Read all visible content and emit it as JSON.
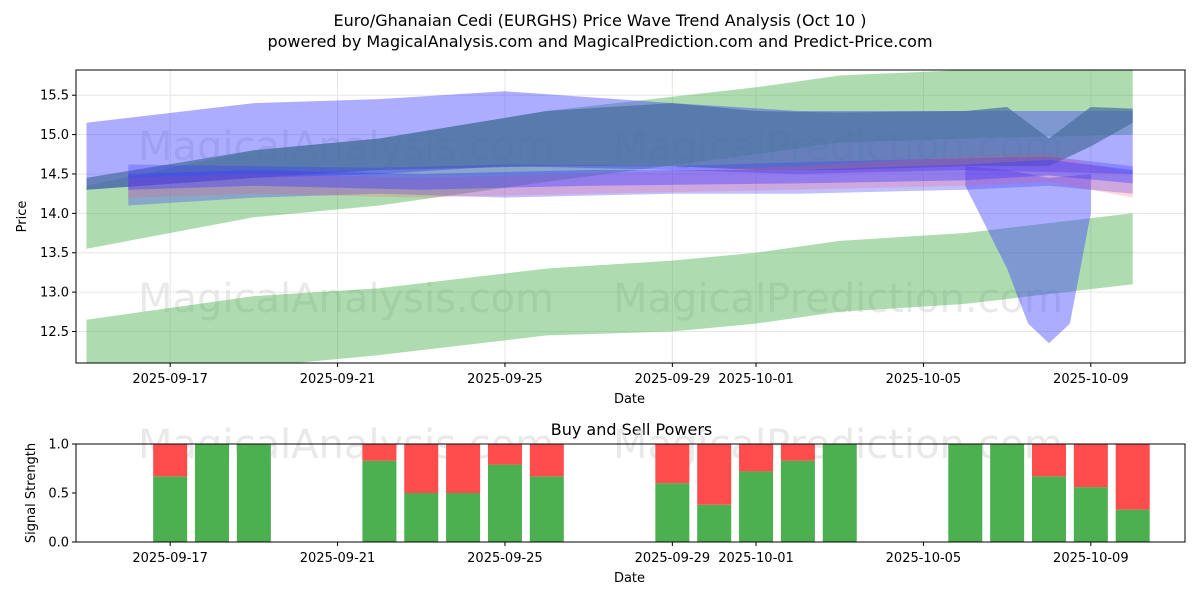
{
  "chart_data": [
    {
      "type": "area",
      "title_line1": "Euro/Ghanaian Cedi (EURGHS) Price Wave Trend Analysis (Oct 10 )",
      "title_line2": "powered by MagicalAnalysis.com and MagicalPrediction.com and Predict-Price.com",
      "xlabel": "Date",
      "ylabel": "Price",
      "x_range": [
        "2025-09-14T18:00",
        "2025-10-11T06:00"
      ],
      "ylim": [
        12.1,
        15.82
      ],
      "yticks": [
        12.5,
        13.0,
        13.5,
        14.0,
        14.5,
        15.0,
        15.5
      ],
      "xticks": [
        "2025-09-17",
        "2025-09-21",
        "2025-09-25",
        "2025-09-29",
        "2025-10-01",
        "2025-10-05",
        "2025-10-09"
      ],
      "watermarks": [
        "MagicalAnalysis.com",
        "MagicalPrediction.com"
      ],
      "colors": {
        "green": "#4caf50",
        "blue": "#3b3bff",
        "dark": "#4a6fa0",
        "red": "#ff4d6a"
      },
      "bands": [
        {
          "name": "green-upper-band",
          "color": "green",
          "opacity": 0.45,
          "upper": [
            [
              "2025-09-15",
              14.35
            ],
            [
              "2025-09-19",
              14.8
            ],
            [
              "2025-09-22",
              14.95
            ],
            [
              "2025-09-26",
              15.3
            ],
            [
              "2025-10-01",
              15.6
            ],
            [
              "2025-10-03",
              15.75
            ],
            [
              "2025-10-06",
              15.82
            ],
            [
              "2025-10-10",
              15.85
            ]
          ],
          "lower": [
            [
              "2025-09-15",
              13.55
            ],
            [
              "2025-09-19",
              13.95
            ],
            [
              "2025-09-22",
              14.1
            ],
            [
              "2025-09-26",
              14.4
            ],
            [
              "2025-10-01",
              14.75
            ],
            [
              "2025-10-03",
              14.9
            ],
            [
              "2025-10-06",
              14.95
            ],
            [
              "2025-10-10",
              15.0
            ]
          ]
        },
        {
          "name": "green-lower-band",
          "color": "green",
          "opacity": 0.45,
          "upper": [
            [
              "2025-09-15",
              12.65
            ],
            [
              "2025-09-19",
              12.95
            ],
            [
              "2025-09-22",
              13.05
            ],
            [
              "2025-09-26",
              13.3
            ],
            [
              "2025-09-29",
              13.4
            ],
            [
              "2025-10-01",
              13.5
            ],
            [
              "2025-10-03",
              13.65
            ],
            [
              "2025-10-06",
              13.75
            ],
            [
              "2025-10-10",
              14.0
            ]
          ],
          "lower": [
            [
              "2025-09-15",
              12.0
            ],
            [
              "2025-09-19",
              12.05
            ],
            [
              "2025-09-22",
              12.2
            ],
            [
              "2025-09-26",
              12.45
            ],
            [
              "2025-09-29",
              12.5
            ],
            [
              "2025-10-01",
              12.6
            ],
            [
              "2025-10-03",
              12.75
            ],
            [
              "2025-10-06",
              12.85
            ],
            [
              "2025-10-10",
              13.1
            ]
          ]
        },
        {
          "name": "blue-wide-band",
          "color": "blue",
          "opacity": 0.42,
          "upper": [
            [
              "2025-09-15",
              15.15
            ],
            [
              "2025-09-19",
              15.4
            ],
            [
              "2025-09-22",
              15.45
            ],
            [
              "2025-09-25",
              15.55
            ],
            [
              "2025-09-29",
              15.4
            ],
            [
              "2025-10-02",
              15.3
            ],
            [
              "2025-10-06",
              15.3
            ],
            [
              "2025-10-10",
              15.3
            ]
          ],
          "lower": [
            [
              "2025-09-15",
              14.3
            ],
            [
              "2025-09-19",
              14.45
            ],
            [
              "2025-09-22",
              14.5
            ],
            [
              "2025-09-25",
              14.6
            ],
            [
              "2025-09-29",
              14.55
            ],
            [
              "2025-10-02",
              14.5
            ],
            [
              "2025-10-06",
              14.55
            ],
            [
              "2025-10-10",
              14.5
            ]
          ]
        },
        {
          "name": "dark-teal-band",
          "color": "dark",
          "opacity": 0.72,
          "upper": [
            [
              "2025-09-15",
              14.45
            ],
            [
              "2025-09-19",
              14.8
            ],
            [
              "2025-09-22",
              14.95
            ],
            [
              "2025-09-26",
              15.3
            ],
            [
              "2025-09-29",
              15.4
            ],
            [
              "2025-10-01",
              15.3
            ],
            [
              "2025-10-03",
              15.28
            ],
            [
              "2025-10-06",
              15.3
            ],
            [
              "2025-10-07",
              15.35
            ],
            [
              "2025-10-08",
              14.95
            ],
            [
              "2025-10-09",
              15.35
            ],
            [
              "2025-10-10",
              15.33
            ]
          ],
          "lower": [
            [
              "2025-09-15",
              14.3
            ],
            [
              "2025-09-19",
              14.45
            ],
            [
              "2025-09-22",
              14.55
            ],
            [
              "2025-09-26",
              14.6
            ],
            [
              "2025-09-29",
              14.6
            ],
            [
              "2025-10-01",
              14.55
            ],
            [
              "2025-10-03",
              14.55
            ],
            [
              "2025-10-06",
              14.6
            ],
            [
              "2025-10-07",
              14.6
            ],
            [
              "2025-10-08",
              14.6
            ],
            [
              "2025-10-09",
              14.85
            ],
            [
              "2025-10-10",
              15.15
            ]
          ]
        },
        {
          "name": "blue-dip-band",
          "color": "blue",
          "opacity": 0.42,
          "upper": [
            [
              "2025-10-06",
              14.6
            ],
            [
              "2025-10-07",
              14.55
            ],
            [
              "2025-10-08",
              14.45
            ],
            [
              "2025-10-09",
              14.5
            ]
          ],
          "lower": [
            [
              "2025-10-06",
              14.35
            ],
            [
              "2025-10-07",
              13.3
            ],
            [
              "2025-10-07T12:00",
              12.6
            ],
            [
              "2025-10-08",
              12.35
            ],
            [
              "2025-10-08T12:00",
              12.6
            ],
            [
              "2025-10-09",
              14.0
            ]
          ]
        },
        {
          "name": "purple-core-band",
          "color": "blue",
          "opacity": 0.32,
          "upper": [
            [
              "2025-09-16",
              14.62
            ],
            [
              "2025-09-19",
              14.6
            ],
            [
              "2025-09-22",
              14.58
            ],
            [
              "2025-09-25",
              14.62
            ],
            [
              "2025-09-29",
              14.6
            ],
            [
              "2025-10-02",
              14.65
            ],
            [
              "2025-10-06",
              14.7
            ],
            [
              "2025-10-08",
              14.72
            ],
            [
              "2025-10-10",
              14.6
            ]
          ],
          "lower": [
            [
              "2025-09-16",
              14.1
            ],
            [
              "2025-09-19",
              14.2
            ],
            [
              "2025-09-22",
              14.25
            ],
            [
              "2025-09-25",
              14.2
            ],
            [
              "2025-09-29",
              14.25
            ],
            [
              "2025-10-02",
              14.25
            ],
            [
              "2025-10-06",
              14.3
            ],
            [
              "2025-10-08",
              14.35
            ],
            [
              "2025-10-10",
              14.25
            ]
          ]
        },
        {
          "name": "red-core-band",
          "color": "red",
          "opacity": 0.22,
          "upper": [
            [
              "2025-09-16",
              14.45
            ],
            [
              "2025-09-19",
              14.5
            ],
            [
              "2025-09-23",
              14.45
            ],
            [
              "2025-09-27",
              14.5
            ],
            [
              "2025-10-02",
              14.6
            ],
            [
              "2025-10-06",
              14.72
            ],
            [
              "2025-10-08",
              14.75
            ],
            [
              "2025-10-10",
              14.5
            ]
          ],
          "lower": [
            [
              "2025-09-16",
              14.2
            ],
            [
              "2025-09-19",
              14.25
            ],
            [
              "2025-09-23",
              14.2
            ],
            [
              "2025-09-27",
              14.25
            ],
            [
              "2025-10-02",
              14.3
            ],
            [
              "2025-10-06",
              14.35
            ],
            [
              "2025-10-08",
              14.4
            ],
            [
              "2025-10-10",
              14.2
            ]
          ]
        },
        {
          "name": "blue-core-band",
          "color": "blue",
          "opacity": 0.4,
          "upper": [
            [
              "2025-09-16",
              14.5
            ],
            [
              "2025-09-19",
              14.55
            ],
            [
              "2025-09-23",
              14.5
            ],
            [
              "2025-09-27",
              14.55
            ],
            [
              "2025-10-02",
              14.55
            ],
            [
              "2025-10-06",
              14.62
            ],
            [
              "2025-10-08",
              14.68
            ],
            [
              "2025-10-10",
              14.55
            ]
          ],
          "lower": [
            [
              "2025-09-16",
              14.3
            ],
            [
              "2025-09-19",
              14.35
            ],
            [
              "2025-09-23",
              14.3
            ],
            [
              "2025-09-27",
              14.35
            ],
            [
              "2025-10-02",
              14.38
            ],
            [
              "2025-10-06",
              14.42
            ],
            [
              "2025-10-08",
              14.48
            ],
            [
              "2025-10-10",
              14.38
            ]
          ]
        }
      ]
    },
    {
      "type": "bar",
      "stacked": true,
      "title": "Buy and Sell Powers",
      "xlabel": "Date",
      "ylabel": "Signal Strength",
      "ylim": [
        0,
        1.0
      ],
      "yticks": [
        0.0,
        0.5,
        1.0
      ],
      "colors": {
        "buy": "#4caf50",
        "sell": "#ff4d4d"
      },
      "dates": [
        "2025-09-17",
        "2025-09-18",
        "2025-09-19",
        "2025-09-22",
        "2025-09-23",
        "2025-09-24",
        "2025-09-25",
        "2025-09-26",
        "2025-09-29",
        "2025-09-30",
        "2025-10-01",
        "2025-10-02",
        "2025-10-03",
        "2025-10-06",
        "2025-10-07",
        "2025-10-08",
        "2025-10-09",
        "2025-10-10"
      ],
      "buy": [
        0.67,
        1.0,
        1.0,
        0.83,
        0.5,
        0.5,
        0.79,
        0.67,
        0.6,
        0.38,
        0.72,
        0.83,
        1.0,
        1.0,
        1.0,
        0.67,
        0.56,
        0.33
      ],
      "sell": [
        0.33,
        0.0,
        0.0,
        0.17,
        0.5,
        0.5,
        0.21,
        0.33,
        0.4,
        0.62,
        0.28,
        0.17,
        0.0,
        0.0,
        0.0,
        0.33,
        0.44,
        0.67
      ]
    }
  ]
}
